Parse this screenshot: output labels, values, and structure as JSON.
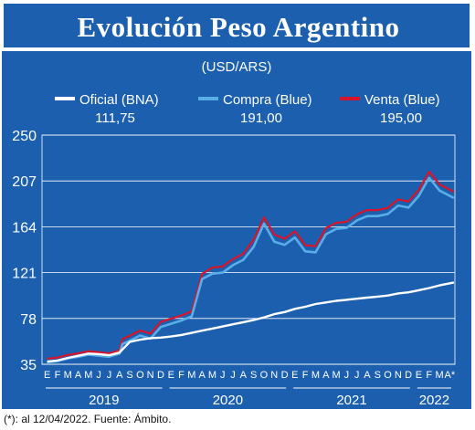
{
  "title": "Evolución Peso Argentino",
  "footnote": "(*): al 12/04/2022.  Fuente: Ámbito.",
  "colors": {
    "background": "#1b5fae",
    "oficial": "#ffffff",
    "compra": "#5aaee8",
    "venta": "#d8142a"
  },
  "chart_data": {
    "type": "line",
    "unit_label": "(USD/ARS)",
    "ylim": [
      35,
      250
    ],
    "yticks": [
      35,
      78,
      121,
      164,
      207,
      250
    ],
    "grid": true,
    "legend_position": "top",
    "months": [
      "E",
      "F",
      "M",
      "A",
      "M",
      "J",
      "J",
      "A",
      "S",
      "O",
      "N",
      "D",
      "E",
      "F",
      "M",
      "A",
      "M",
      "J",
      "J",
      "A",
      "S",
      "O",
      "N",
      "D",
      "E",
      "F",
      "M",
      "A",
      "M",
      "J",
      "J",
      "A",
      "S",
      "O",
      "N",
      "D",
      "E",
      "F",
      "M",
      "A*"
    ],
    "years": [
      "2019",
      "2020",
      "2021",
      "2022"
    ],
    "series": [
      {
        "name": "Oficial (BNA)",
        "last_value": "111,75",
        "x": [
          0,
          1,
          2,
          3,
          4,
          5,
          6,
          7,
          8,
          9,
          10,
          11,
          12,
          13,
          14,
          15,
          16,
          17,
          18,
          19,
          20,
          21,
          22,
          23,
          24,
          25,
          26,
          27,
          28,
          29,
          30,
          31,
          32,
          33,
          34,
          35,
          36,
          37,
          38,
          39.4
        ],
        "values": [
          37.5,
          38.5,
          41,
          43,
          45,
          44.5,
          43.5,
          46,
          56,
          58,
          59.5,
          60,
          61,
          62.5,
          64.5,
          66.5,
          68.5,
          70.5,
          72.5,
          74.5,
          76.5,
          79,
          82,
          84,
          87,
          89,
          91.5,
          93,
          94.5,
          95.5,
          96.5,
          97.5,
          98.5,
          99.5,
          101.5,
          102.5,
          104.5,
          106.5,
          109,
          111.75
        ]
      },
      {
        "name": "Compra (Blue)",
        "last_value": "191,00",
        "x": [
          0,
          1,
          2,
          3,
          4,
          5,
          6,
          7,
          7.3,
          8,
          9,
          10,
          11,
          12,
          13,
          14,
          15,
          16,
          17,
          18,
          19,
          20,
          21,
          22,
          23,
          24,
          25,
          26,
          27,
          28,
          29,
          30,
          31,
          32,
          33,
          34,
          35,
          36,
          37,
          38,
          39.4
        ],
        "values": [
          37,
          38,
          40.5,
          42,
          44,
          43,
          42,
          45,
          54,
          57,
          62,
          59,
          70,
          73,
          76,
          80,
          115,
          120,
          121,
          128,
          133,
          145,
          167,
          150,
          147,
          154,
          141,
          140,
          157,
          162,
          163,
          170,
          174,
          174,
          176,
          184,
          182,
          193,
          210,
          198,
          191
        ]
      },
      {
        "name": "Venta (Blue)",
        "last_value": "195,00",
        "x": [
          0,
          1,
          2,
          3,
          4,
          5,
          6,
          7,
          7.3,
          8,
          9,
          10,
          11,
          12,
          13,
          14,
          15,
          16,
          17,
          18,
          19,
          20,
          21,
          22,
          23,
          24,
          25,
          26,
          27,
          28,
          29,
          30,
          31,
          32,
          33,
          34,
          35,
          36,
          37,
          38,
          39.4
        ],
        "values": [
          38.5,
          39.5,
          42,
          43.5,
          45.5,
          44.5,
          43.5,
          46.5,
          57,
          60,
          65,
          62,
          73,
          76,
          79,
          83,
          118,
          124,
          125,
          132,
          137,
          150,
          171,
          155,
          151,
          158,
          145,
          144,
          161,
          166,
          167,
          174,
          178,
          178,
          180,
          188,
          186,
          197,
          214,
          202,
          195
        ]
      }
    ]
  }
}
